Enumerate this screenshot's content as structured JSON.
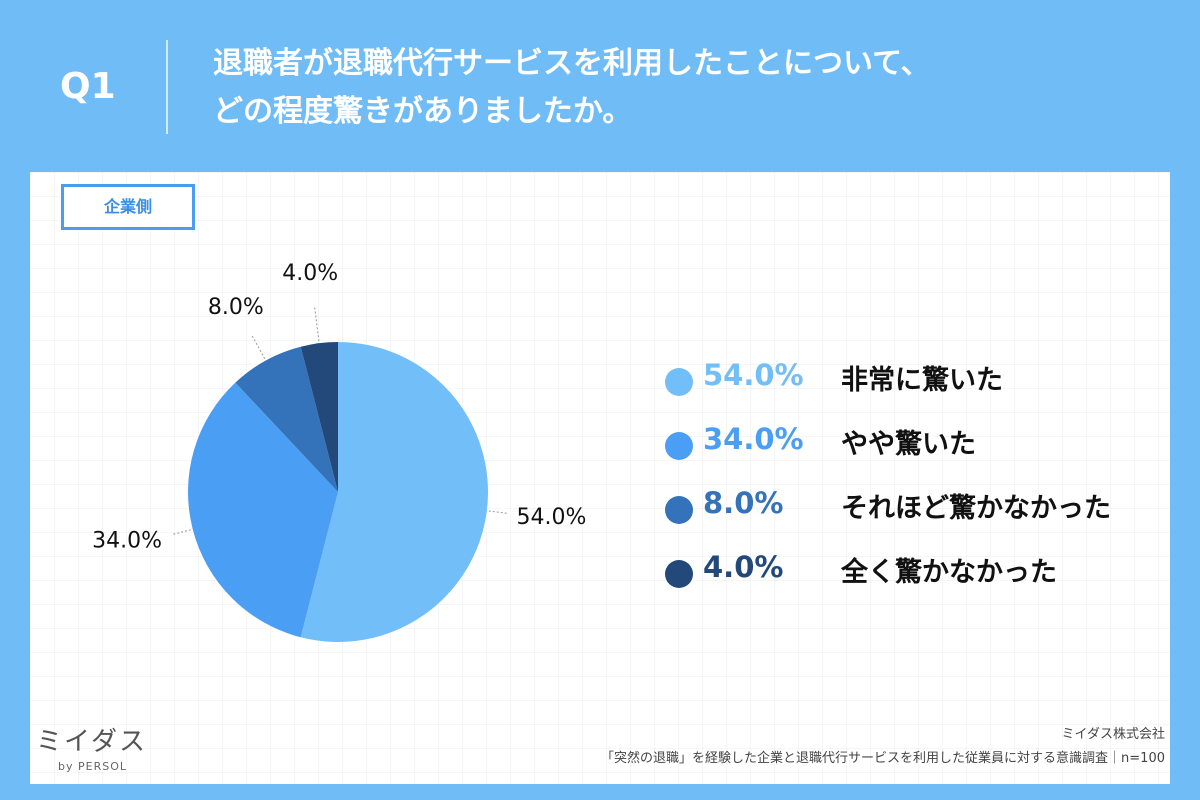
{
  "header": {
    "q_label": "Q1",
    "question_line1": "退職者が退職代行サービスを利用したことについて、",
    "question_line2": "どの程度驚きがありましたか。"
  },
  "panel": {
    "tag": "企業側"
  },
  "chart_data": {
    "type": "pie",
    "categories": [
      "非常に驚いた",
      "やや驚いた",
      "それほど驚かなかった",
      "全く驚かなかった"
    ],
    "values": [
      54.0,
      34.0,
      8.0,
      4.0
    ],
    "value_labels": [
      "54.0%",
      "34.0%",
      "8.0%",
      "4.0%"
    ],
    "colors": [
      "#72bef8",
      "#4a9ff5",
      "#3473ba",
      "#23497a"
    ],
    "legend_placement": "right"
  },
  "footer": {
    "logo_text": "ミイダス",
    "logo_sub": "by PERSOL",
    "company": "ミイダス株式会社",
    "survey": "「突然の退職」を経験した企業と退職代行サービスを利用した従業員に対する意識調査｜n=100"
  }
}
